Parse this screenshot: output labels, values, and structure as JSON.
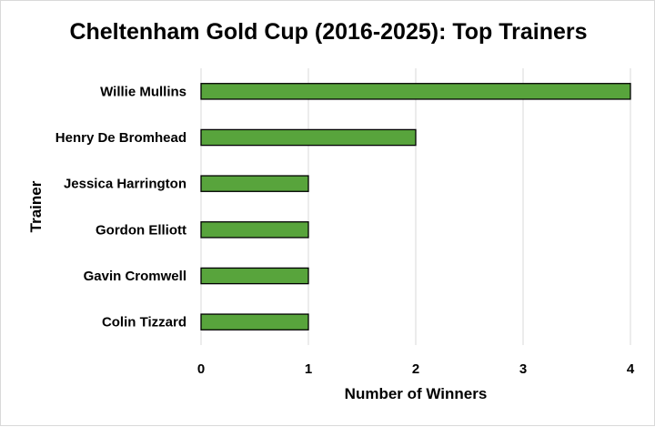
{
  "chart_data": {
    "type": "bar",
    "orientation": "horizontal",
    "title": "Cheltenham Gold Cup (2016-2025): Top Trainers",
    "xlabel": "Number of Winners",
    "ylabel": "Trainer",
    "categories": [
      "Willie Mullins",
      "Henry De Bromhead",
      "Jessica Harrington",
      "Gordon Elliott",
      "Gavin Cromwell",
      "Colin Tizzard"
    ],
    "values": [
      4,
      2,
      1,
      1,
      1,
      1
    ],
    "xlim": [
      0,
      4
    ],
    "xticks": [
      "0",
      "1",
      "2",
      "3",
      "4"
    ],
    "grid": "vertical",
    "legend": "none",
    "bar_color": "#58a43c",
    "bar_edge_color": "#000000",
    "grid_color": "#d9d9d9"
  }
}
